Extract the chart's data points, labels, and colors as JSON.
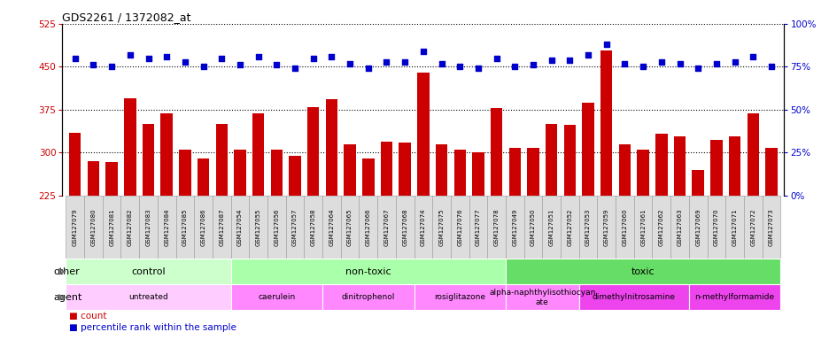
{
  "title": "GDS2261 / 1372082_at",
  "samples": [
    "GSM127079",
    "GSM127080",
    "GSM127081",
    "GSM127082",
    "GSM127083",
    "GSM127084",
    "GSM127085",
    "GSM127086",
    "GSM127087",
    "GSM127054",
    "GSM127055",
    "GSM127056",
    "GSM127057",
    "GSM127058",
    "GSM127064",
    "GSM127065",
    "GSM127066",
    "GSM127067",
    "GSM127068",
    "GSM127074",
    "GSM127075",
    "GSM127076",
    "GSM127077",
    "GSM127078",
    "GSM127049",
    "GSM127050",
    "GSM127051",
    "GSM127052",
    "GSM127053",
    "GSM127059",
    "GSM127060",
    "GSM127061",
    "GSM127062",
    "GSM127063",
    "GSM127069",
    "GSM127070",
    "GSM127071",
    "GSM127072",
    "GSM127073"
  ],
  "counts": [
    335,
    285,
    283,
    395,
    350,
    368,
    305,
    290,
    350,
    305,
    368,
    305,
    295,
    380,
    393,
    315,
    290,
    320,
    318,
    440,
    315,
    305,
    300,
    378,
    308,
    308,
    350,
    348,
    388,
    478,
    315,
    305,
    333,
    328,
    270,
    322,
    328,
    368,
    308
  ],
  "percentile_ranks": [
    80,
    76,
    75,
    82,
    80,
    81,
    78,
    75,
    80,
    76,
    81,
    76,
    74,
    80,
    81,
    77,
    74,
    78,
    78,
    84,
    77,
    75,
    74,
    80,
    75,
    76,
    79,
    79,
    82,
    88,
    77,
    75,
    78,
    77,
    74,
    77,
    78,
    81,
    75
  ],
  "ylim_left": [
    225,
    525
  ],
  "ylim_right": [
    0,
    100
  ],
  "yticks_left": [
    225,
    300,
    375,
    450,
    525
  ],
  "yticks_right": [
    0,
    25,
    50,
    75,
    100
  ],
  "bar_color": "#cc0000",
  "dot_color": "#0000cc",
  "other_groups": [
    {
      "label": "control",
      "start": 0,
      "end": 9,
      "color": "#ccffcc"
    },
    {
      "label": "non-toxic",
      "start": 9,
      "end": 24,
      "color": "#aaffaa"
    },
    {
      "label": "toxic",
      "start": 24,
      "end": 39,
      "color": "#66dd66"
    }
  ],
  "agent_groups": [
    {
      "label": "untreated",
      "start": 0,
      "end": 9,
      "color": "#ffccff"
    },
    {
      "label": "caerulein",
      "start": 9,
      "end": 14,
      "color": "#ff88ff"
    },
    {
      "label": "dinitrophenol",
      "start": 14,
      "end": 19,
      "color": "#ff88ff"
    },
    {
      "label": "rosiglitazone",
      "start": 19,
      "end": 24,
      "color": "#ff88ff"
    },
    {
      "label": "alpha-naphthylisothiocyan\nate",
      "start": 24,
      "end": 28,
      "color": "#ff88ff"
    },
    {
      "label": "dimethylnitrosamine",
      "start": 28,
      "end": 34,
      "color": "#ee44ee"
    },
    {
      "label": "n-methylformamide",
      "start": 34,
      "end": 39,
      "color": "#ee44ee"
    }
  ],
  "background_color": "#ffffff",
  "tick_bg_color": "#dddddd"
}
